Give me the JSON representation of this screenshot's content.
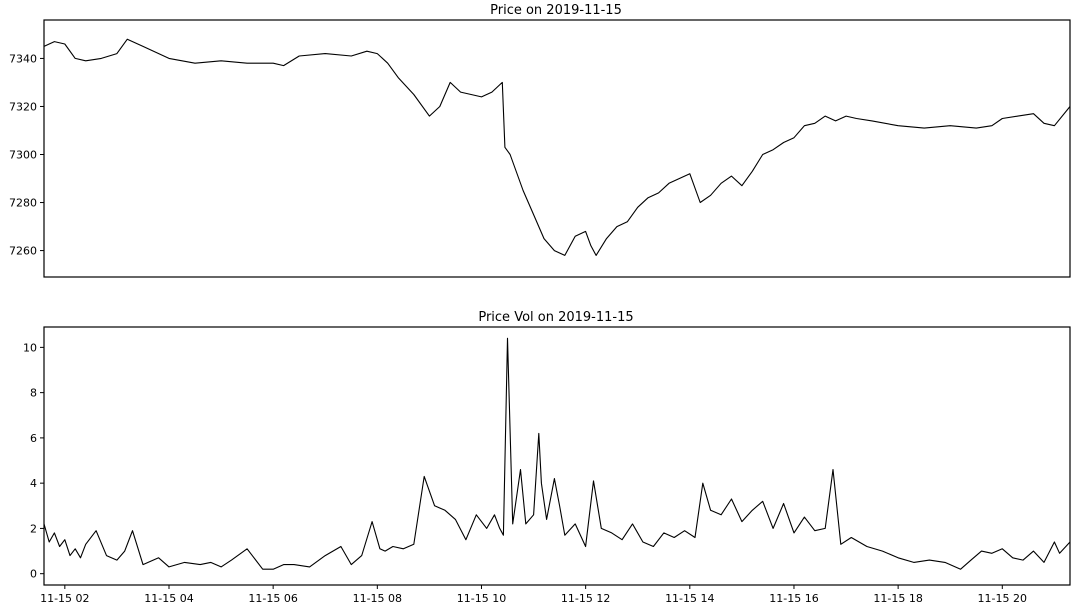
{
  "chart_data": [
    {
      "type": "line",
      "title": "Price on 2019-11-15",
      "xlabel": "",
      "ylabel": "",
      "xlim_hours": [
        1.6,
        21.3
      ],
      "ylim": [
        7249,
        7356
      ],
      "yticks": [
        7260,
        7280,
        7300,
        7320,
        7340
      ],
      "ytick_labels": [
        "7260",
        "7280",
        "7300",
        "7320",
        "7340"
      ],
      "xtick_labels_shown": false,
      "grid": false,
      "series": [
        {
          "x_hours": [
            1.6,
            1.8,
            2.0,
            2.2,
            2.4,
            2.7,
            3.0,
            3.2,
            3.5,
            4.0,
            4.5,
            5.0,
            5.5,
            6.0,
            6.2,
            6.5,
            7.0,
            7.5,
            7.8,
            8.0,
            8.2,
            8.4,
            8.7,
            9.0,
            9.2,
            9.4,
            9.6,
            9.8,
            10.0,
            10.2,
            10.4,
            10.45,
            10.55,
            10.8,
            11.0,
            11.2,
            11.4,
            11.6,
            11.8,
            12.0,
            12.1,
            12.2,
            12.4,
            12.6,
            12.8,
            13.0,
            13.2,
            13.4,
            13.6,
            13.8,
            14.0,
            14.2,
            14.4,
            14.6,
            14.8,
            15.0,
            15.2,
            15.4,
            15.6,
            15.8,
            16.0,
            16.2,
            16.4,
            16.6,
            16.8,
            17.0,
            17.2,
            17.5,
            18.0,
            18.5,
            19.0,
            19.5,
            19.8,
            20.0,
            20.3,
            20.6,
            20.8,
            21.0,
            21.3
          ],
          "values": [
            7345,
            7347,
            7346,
            7340,
            7339,
            7340,
            7342,
            7348,
            7345,
            7340,
            7338,
            7339,
            7338,
            7338,
            7337,
            7341,
            7342,
            7341,
            7343,
            7342,
            7338,
            7332,
            7325,
            7316,
            7320,
            7330,
            7326,
            7325,
            7324,
            7326,
            7330,
            7303,
            7300,
            7285,
            7275,
            7265,
            7260,
            7258,
            7266,
            7268,
            7262,
            7258,
            7265,
            7270,
            7272,
            7278,
            7282,
            7284,
            7288,
            7290,
            7292,
            7280,
            7283,
            7288,
            7291,
            7287,
            7293,
            7300,
            7302,
            7305,
            7307,
            7312,
            7313,
            7316,
            7314,
            7316,
            7315,
            7314,
            7312,
            7311,
            7312,
            7311,
            7312,
            7315,
            7316,
            7317,
            7313,
            7312,
            7320
          ]
        }
      ]
    },
    {
      "type": "line",
      "title": "Price Vol on 2019-11-15",
      "xlabel": "",
      "ylabel": "",
      "xlim_hours": [
        1.6,
        21.3
      ],
      "ylim": [
        -0.5,
        10.9
      ],
      "yticks": [
        0,
        2,
        4,
        6,
        8,
        10
      ],
      "ytick_labels": [
        "0",
        "2",
        "4",
        "6",
        "8",
        "10"
      ],
      "xticks_hours": [
        2,
        4,
        6,
        8,
        10,
        12,
        14,
        16,
        18,
        20
      ],
      "xtick_labels": [
        "11-15 02",
        "11-15 04",
        "11-15 06",
        "11-15 08",
        "11-15 10",
        "11-15 12",
        "11-15 14",
        "11-15 16",
        "11-15 18",
        "11-15 20"
      ],
      "grid": false,
      "series": [
        {
          "x_hours": [
            1.6,
            1.7,
            1.8,
            1.9,
            2.0,
            2.1,
            2.2,
            2.3,
            2.4,
            2.6,
            2.8,
            3.0,
            3.15,
            3.3,
            3.5,
            3.8,
            4.0,
            4.3,
            4.6,
            4.8,
            5.0,
            5.2,
            5.5,
            5.8,
            6.0,
            6.2,
            6.4,
            6.7,
            7.0,
            7.3,
            7.5,
            7.7,
            7.9,
            8.05,
            8.15,
            8.3,
            8.5,
            8.7,
            8.9,
            9.1,
            9.3,
            9.5,
            9.7,
            9.9,
            10.1,
            10.25,
            10.35,
            10.42,
            10.5,
            10.6,
            10.75,
            10.85,
            11.0,
            11.1,
            11.15,
            11.25,
            11.4,
            11.5,
            11.6,
            11.8,
            12.0,
            12.15,
            12.3,
            12.5,
            12.7,
            12.9,
            13.1,
            13.3,
            13.5,
            13.7,
            13.9,
            14.1,
            14.25,
            14.4,
            14.6,
            14.8,
            15.0,
            15.2,
            15.4,
            15.6,
            15.8,
            16.0,
            16.2,
            16.4,
            16.6,
            16.75,
            16.9,
            17.1,
            17.4,
            17.7,
            18.0,
            18.3,
            18.6,
            18.9,
            19.2,
            19.4,
            19.6,
            19.8,
            20.0,
            20.2,
            20.4,
            20.6,
            20.8,
            21.0,
            21.1,
            21.3
          ],
          "values": [
            2.2,
            1.4,
            1.8,
            1.2,
            1.5,
            0.8,
            1.1,
            0.7,
            1.3,
            1.9,
            0.8,
            0.6,
            1.0,
            1.9,
            0.4,
            0.7,
            0.3,
            0.5,
            0.4,
            0.5,
            0.3,
            0.6,
            1.1,
            0.2,
            0.2,
            0.4,
            0.4,
            0.3,
            0.8,
            1.2,
            0.4,
            0.8,
            2.3,
            1.1,
            1.0,
            1.2,
            1.1,
            1.3,
            4.3,
            3.0,
            2.8,
            2.4,
            1.5,
            2.6,
            2.0,
            2.6,
            2.0,
            1.7,
            10.4,
            2.2,
            4.6,
            2.2,
            2.6,
            6.2,
            4.0,
            2.4,
            4.2,
            3.0,
            1.7,
            2.2,
            1.2,
            4.1,
            2.0,
            1.8,
            1.5,
            2.2,
            1.4,
            1.2,
            1.8,
            1.6,
            1.9,
            1.6,
            4.0,
            2.8,
            2.6,
            3.3,
            2.3,
            2.8,
            3.2,
            2.0,
            3.1,
            1.8,
            2.5,
            1.9,
            2.0,
            4.6,
            1.3,
            1.6,
            1.2,
            1.0,
            0.7,
            0.5,
            0.6,
            0.5,
            0.2,
            0.6,
            1.0,
            0.9,
            1.1,
            0.7,
            0.6,
            1.0,
            0.5,
            1.4,
            0.9,
            1.4
          ]
        }
      ]
    }
  ]
}
